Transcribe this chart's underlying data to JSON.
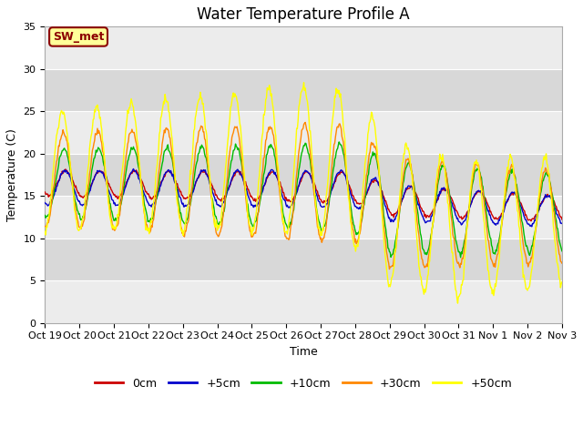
{
  "title": "Water Temperature Profile A",
  "xlabel": "Time",
  "ylabel": "Temperature (C)",
  "ylim": [
    0,
    35
  ],
  "background_color": "#ffffff",
  "plot_bg_light": "#ececec",
  "plot_bg_dark": "#d8d8d8",
  "grid_color": "#ffffff",
  "annotation_text": "SW_met",
  "annotation_bg": "#ffff99",
  "annotation_border": "#8b0000",
  "series_colors": {
    "0cm": "#cc0000",
    "+5cm": "#0000cc",
    "+10cm": "#00bb00",
    "+30cm": "#ff8800",
    "+50cm": "#ffff00"
  },
  "xtick_labels": [
    "Oct 19",
    "Oct 20",
    "Oct 21",
    "Oct 22",
    "Oct 23",
    "Oct 24",
    "Oct 25",
    "Oct 26",
    "Oct 27",
    "Oct 28",
    "Oct 29",
    "Oct 30",
    "Oct 31",
    "Nov 1",
    "Nov 2",
    "Nov 3"
  ],
  "title_fontsize": 12,
  "axis_label_fontsize": 9,
  "tick_fontsize": 8,
  "legend_fontsize": 9,
  "figsize": [
    6.4,
    4.8
  ],
  "dpi": 100
}
